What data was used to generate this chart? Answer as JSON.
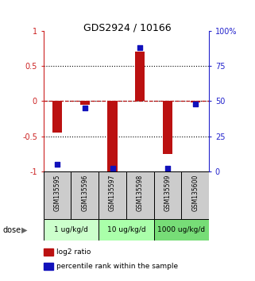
{
  "title": "GDS2924 / 10166",
  "samples": [
    "GSM135595",
    "GSM135596",
    "GSM135597",
    "GSM135598",
    "GSM135599",
    "GSM135600"
  ],
  "log2_ratio": [
    -0.45,
    -0.05,
    -1.0,
    0.7,
    -0.75,
    -0.02
  ],
  "percentile_rank": [
    5,
    45,
    2,
    88,
    2,
    48
  ],
  "dose_groups": [
    {
      "label": "1 ug/kg/d",
      "samples": [
        0,
        1
      ],
      "color": "#ccffcc"
    },
    {
      "label": "10 ug/kg/d",
      "samples": [
        2,
        3
      ],
      "color": "#aaffaa"
    },
    {
      "label": "1000 ug/kg/d",
      "samples": [
        4,
        5
      ],
      "color": "#77dd77"
    }
  ],
  "bar_color": "#bb1111",
  "dot_color": "#1111bb",
  "left_axis_color": "#cc2222",
  "right_axis_color": "#2222cc",
  "ylim_left": [
    -1.0,
    1.0
  ],
  "yticks_left": [
    -1.0,
    -0.5,
    0.0,
    0.5,
    1.0
  ],
  "yticks_right": [
    0,
    25,
    50,
    75,
    100
  ],
  "ylabel_left_ticks": [
    "-1",
    "-0.5",
    "0",
    "0.5",
    "1"
  ],
  "ylabel_right_ticks": [
    "0",
    "25",
    "50",
    "75",
    "100%"
  ],
  "hlines_dotted": [
    -0.5,
    0.5
  ],
  "sample_box_color": "#cccccc",
  "bar_width": 0.35,
  "dot_size": 20,
  "legend_red_label": "log2 ratio",
  "legend_blue_label": "percentile rank within the sample"
}
